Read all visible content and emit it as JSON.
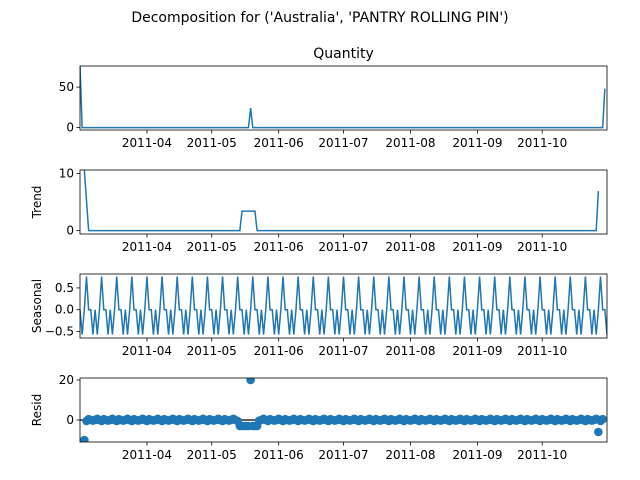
{
  "figure": {
    "suptitle": "Decomposition for ('Australia', 'PANTRY ROLLING PIN')"
  },
  "chart_data": [
    {
      "type": "line",
      "title": "Quantity",
      "ylabel": "",
      "ylim": [
        -3,
        76
      ],
      "yticks": [
        0,
        50
      ],
      "xlim": [
        0,
        244
      ],
      "xtick_labels": [
        "2011-04",
        "2011-05",
        "2011-06",
        "2011-07",
        "2011-08",
        "2011-09",
        "2011-10"
      ],
      "xtick_days": [
        31,
        61,
        92,
        122,
        153,
        184,
        214
      ],
      "x_unit": "days since 2011-03-01",
      "series": [
        {
          "values": [
            [
              0,
              76
            ],
            [
              1,
              0
            ],
            [
              78,
              0
            ],
            [
              79,
              24
            ],
            [
              80,
              0
            ],
            [
              242,
              0
            ],
            [
              243,
              48
            ]
          ]
        }
      ]
    },
    {
      "type": "line",
      "title": "",
      "ylabel": "Trend",
      "ylim": [
        -0.6,
        10.6
      ],
      "yticks": [
        0,
        10
      ],
      "xlim": [
        0,
        244
      ],
      "xtick_labels": [
        "2011-04",
        "2011-05",
        "2011-06",
        "2011-07",
        "2011-08",
        "2011-09",
        "2011-10"
      ],
      "xtick_days": [
        31,
        61,
        92,
        122,
        153,
        184,
        214
      ],
      "series": [
        {
          "values": [
            [
              2,
              10.6
            ],
            [
              4,
              0
            ],
            [
              74,
              0
            ],
            [
              75,
              3.4
            ],
            [
              81,
              3.4
            ],
            [
              82,
              0
            ],
            [
              239,
              0
            ],
            [
              240,
              6.9
            ]
          ]
        }
      ]
    },
    {
      "type": "line",
      "title": "",
      "ylabel": "Seasonal",
      "ylim": [
        -0.65,
        0.82
      ],
      "yticks": [
        -0.5,
        0.0,
        0.5
      ],
      "ytick_labels": [
        "−0.5",
        "0.0",
        "0.5"
      ],
      "xlim": [
        0,
        244
      ],
      "xtick_labels": [
        "2011-04",
        "2011-05",
        "2011-06",
        "2011-07",
        "2011-08",
        "2011-09",
        "2011-10"
      ],
      "xtick_days": [
        31,
        61,
        92,
        122,
        153,
        184,
        214
      ],
      "pattern_period": 7,
      "pattern": [
        0.0,
        -0.57,
        0.0,
        0.76,
        0.0,
        0.0,
        -0.57
      ],
      "series": [
        {
          "name": "seasonal"
        }
      ]
    },
    {
      "type": "scatter",
      "title": "",
      "ylabel": "Resid",
      "ylim": [
        -11,
        21
      ],
      "yticks": [
        0,
        20
      ],
      "xlim": [
        0,
        244
      ],
      "xtick_labels": [
        "2011-04",
        "2011-05",
        "2011-06",
        "2011-07",
        "2011-08",
        "2011-09",
        "2011-10"
      ],
      "xtick_days": [
        31,
        61,
        92,
        122,
        153,
        184,
        214
      ],
      "baseline": 0,
      "series": [
        {
          "typical": [
            0.0,
            0.6,
            0.0,
            -0.5,
            0.4,
            0.0,
            -0.3
          ],
          "exceptions": [
            [
              2,
              -10
            ],
            [
              74,
              -3
            ],
            [
              75,
              -3
            ],
            [
              76,
              -3
            ],
            [
              77,
              -3
            ],
            [
              78,
              -3
            ],
            [
              79,
              20
            ],
            [
              80,
              -3
            ],
            [
              81,
              -3
            ],
            [
              82,
              -3
            ],
            [
              240,
              -6
            ]
          ]
        }
      ]
    }
  ]
}
